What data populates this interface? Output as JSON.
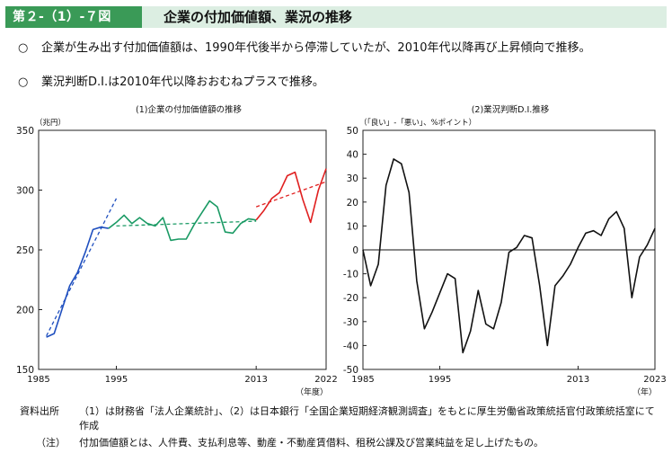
{
  "header": {
    "figure_label": "第２-（1）-７図",
    "title": "企業の付加価値額、業況の推移"
  },
  "bullets": [
    {
      "mark": "○",
      "text": "企業が生み出す付加価値額は、1990年代後半から停滞していたが、2010年代以降再び上昇傾向で推移。"
    },
    {
      "mark": "○",
      "text": "業況判断D.I.は2010年代以降おおむねプラスで推移。"
    }
  ],
  "chart_data": [
    {
      "type": "line",
      "title": "(1)企業の付加価値額の推移",
      "ylabel": "（兆円）",
      "xlabel": "（年度）",
      "ylim": [
        150,
        350
      ],
      "xlim": [
        1985,
        2022
      ],
      "y_ticks": [
        150,
        200,
        250,
        300,
        350
      ],
      "x_ticks": [
        1985,
        1995,
        2013,
        2022
      ],
      "grid": false,
      "series": [
        {
          "color": "#1f4fbf",
          "x": [
            1986,
            1987,
            1988,
            1989,
            1990,
            1991,
            1992,
            1993,
            1994
          ],
          "y": [
            177,
            180,
            200,
            220,
            231,
            248,
            267,
            269,
            268
          ]
        },
        {
          "color": "#1a9a64",
          "x": [
            1994,
            1995,
            1996,
            1997,
            1998,
            1999,
            2000,
            2001,
            2002,
            2003,
            2004,
            2005,
            2006,
            2007,
            2008,
            2009,
            2010,
            2011,
            2012,
            2013
          ],
          "y": [
            268,
            273,
            279,
            272,
            277,
            272,
            270,
            277,
            258,
            259,
            259,
            271,
            281,
            291,
            286,
            265,
            264,
            272,
            276,
            275
          ]
        },
        {
          "color": "#e02020",
          "x": [
            2013,
            2014,
            2015,
            2016,
            2017,
            2018,
            2019,
            2020,
            2021,
            2022
          ],
          "y": [
            275,
            283,
            293,
            298,
            312,
            315,
            292,
            273,
            300,
            318
          ]
        }
      ],
      "trend_lines": [
        {
          "color": "#1f4fbf",
          "x": [
            1986,
            1995
          ],
          "y": [
            178,
            293
          ]
        },
        {
          "color": "#1a9a64",
          "x": [
            1995,
            2013
          ],
          "y": [
            270,
            274
          ]
        },
        {
          "color": "#e02020",
          "x": [
            2013,
            2022
          ],
          "y": [
            286,
            307
          ]
        }
      ]
    },
    {
      "type": "line",
      "title": "(2)業況判断D.I.推移",
      "ylabel": "（「良い」-「悪い」、%ポイント）",
      "xlabel": "（年）",
      "ylim": [
        -50,
        50
      ],
      "xlim": [
        1985,
        2023
      ],
      "y_ticks": [
        -50,
        -40,
        -30,
        -20,
        -10,
        0,
        10,
        20,
        30,
        40,
        50
      ],
      "x_ticks": [
        1985,
        1995,
        2013,
        2023
      ],
      "grid": false,
      "zero_line": true,
      "series": [
        {
          "color": "#111111",
          "x": [
            1985,
            1986,
            1987,
            1988,
            1989,
            1990,
            1991,
            1992,
            1993,
            1994,
            1995,
            1996,
            1997,
            1998,
            1999,
            2000,
            2001,
            2002,
            2003,
            2004,
            2005,
            2006,
            2007,
            2008,
            2009,
            2010,
            2011,
            2012,
            2013,
            2014,
            2015,
            2016,
            2017,
            2018,
            2019,
            2020,
            2021,
            2022,
            2023
          ],
          "y": [
            0,
            -15,
            -6,
            27,
            38,
            36,
            24,
            -13,
            -33,
            -26,
            -18,
            -10,
            -12,
            -43,
            -34,
            -17,
            -31,
            -33,
            -22,
            -1,
            1,
            6,
            5,
            -15,
            -40,
            -15,
            -11,
            -6,
            1,
            7,
            8,
            6,
            13,
            16,
            9,
            -20,
            -3,
            2,
            9
          ]
        }
      ]
    }
  ],
  "footer": {
    "source_prefix": "資料出所",
    "source_text": "（1）は財務省「法人企業統計」、（2）は日本銀行「全国企業短期経済観測調査」をもとに厚生労働省政策統括官付政策統括室にて作成",
    "note_prefix": "（注）",
    "note_text": "付加価値額とは、人件費、支払利息等、動産・不動産賃借料、租税公課及び営業純益を足し上げたもの。"
  }
}
